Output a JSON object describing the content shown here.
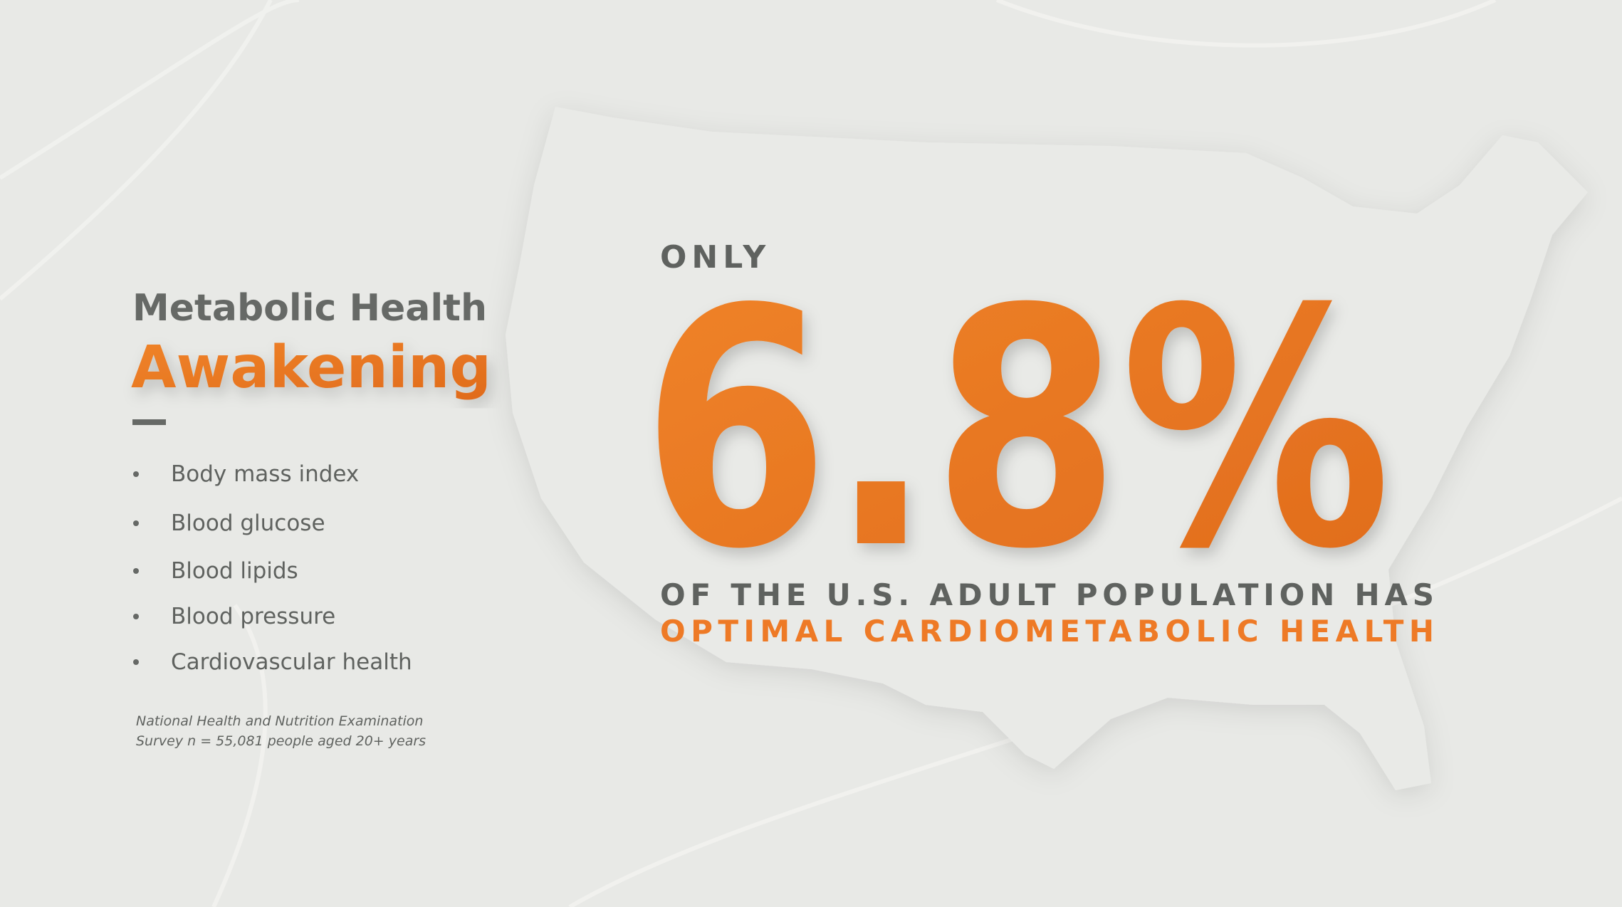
{
  "slide": {
    "heading": "Metabolic Health",
    "subheading": "Awakening",
    "bullets": [
      "Body mass index",
      "Blood glucose",
      "Blood lipids",
      "Blood pressure",
      "Cardiovascular health"
    ],
    "source": [
      "National Health and Nutrition Examination",
      "Survey n = 55,081 people aged 20+ years"
    ],
    "stat": {
      "prefix": "ONLY",
      "figure": "6.8%",
      "line1": "OF THE U.S. ADULT POPULATION HAS",
      "line2": "OPTIMAL CARDIOMETABOLIC HEALTH"
    }
  }
}
